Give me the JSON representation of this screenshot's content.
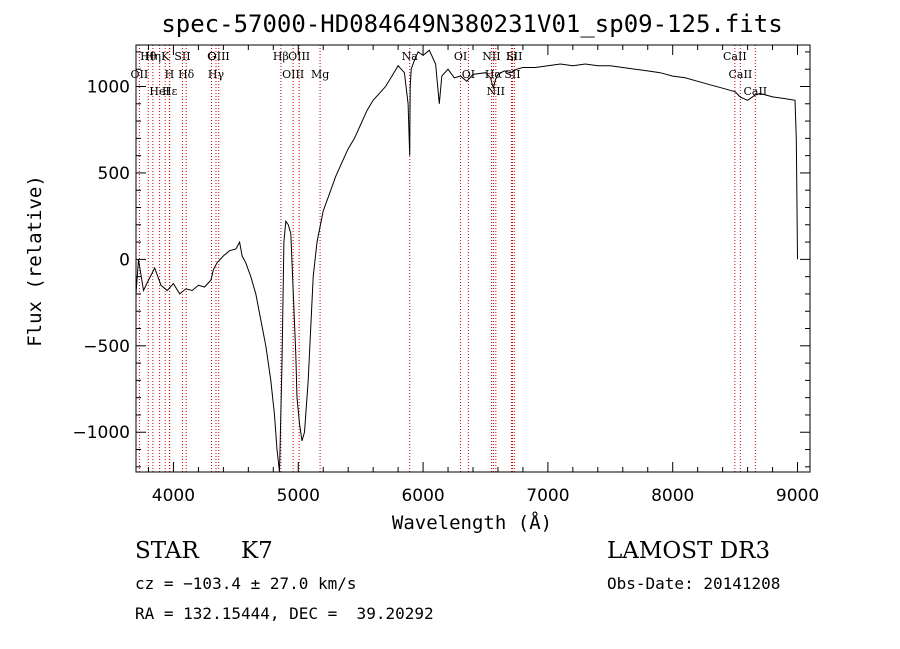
{
  "chart_data": {
    "type": "line",
    "title": "spec-57000-HD084649N380231V01_sp09-125.fits",
    "xlabel": "Wavelength (Å)",
    "ylabel": "Flux (relative)",
    "xlim": [
      3700,
      9100
    ],
    "ylim": [
      -1230,
      1240
    ],
    "x_ticks": [
      4000,
      5000,
      6000,
      7000,
      8000,
      9000
    ],
    "y_ticks": [
      -1000,
      -500,
      0,
      500,
      1000
    ],
    "x_tick_labels": [
      "4000",
      "5000",
      "6000",
      "7000",
      "8000",
      "9000"
    ],
    "y_tick_labels": [
      "−1000",
      "−500",
      "0",
      "500",
      "1000"
    ],
    "series": [
      {
        "name": "flux",
        "x": [
          3700,
          3720,
          3760,
          3800,
          3850,
          3900,
          3950,
          4000,
          4050,
          4100,
          4150,
          4200,
          4250,
          4300,
          4320,
          4350,
          4400,
          4450,
          4500,
          4530,
          4550,
          4580,
          4620,
          4660,
          4700,
          4740,
          4780,
          4810,
          4830,
          4850,
          4870,
          4885,
          4900,
          4920,
          4940,
          4960,
          4980,
          4990,
          5010,
          5030,
          5050,
          5080,
          5100,
          5120,
          5150,
          5200,
          5250,
          5300,
          5350,
          5400,
          5450,
          5500,
          5550,
          5600,
          5650,
          5700,
          5750,
          5800,
          5850,
          5880,
          5893,
          5897,
          5905,
          5930,
          5960,
          6000,
          6050,
          6100,
          6130,
          6150,
          6200,
          6250,
          6300,
          6350,
          6400,
          6500,
          6540,
          6563,
          6580,
          6600,
          6650,
          6700,
          6750,
          6800,
          6900,
          7000,
          7100,
          7200,
          7300,
          7400,
          7500,
          7600,
          7700,
          7800,
          7900,
          8000,
          8100,
          8200,
          8300,
          8400,
          8500,
          8540,
          8600,
          8660,
          8700,
          8800,
          8900,
          8980,
          8990,
          9000
        ],
        "values": [
          -200,
          0,
          -180,
          -120,
          -50,
          -150,
          -180,
          -140,
          -200,
          -170,
          -180,
          -150,
          -160,
          -120,
          -60,
          -20,
          20,
          50,
          60,
          100,
          20,
          -20,
          -100,
          -200,
          -350,
          -500,
          -700,
          -900,
          -1100,
          -1230,
          -600,
          100,
          220,
          200,
          150,
          -200,
          -550,
          -800,
          -950,
          -1050,
          -1000,
          -700,
          -400,
          -100,
          100,
          280,
          380,
          480,
          560,
          640,
          700,
          780,
          860,
          920,
          960,
          1000,
          1060,
          1120,
          1080,
          900,
          600,
          1000,
          1100,
          1150,
          1200,
          1180,
          1210,
          1130,
          900,
          1060,
          1100,
          1050,
          1060,
          1030,
          1070,
          1080,
          1050,
          990,
          1040,
          1070,
          1090,
          1080,
          1100,
          1110,
          1110,
          1120,
          1130,
          1120,
          1130,
          1120,
          1120,
          1110,
          1100,
          1090,
          1080,
          1060,
          1050,
          1030,
          1010,
          990,
          970,
          940,
          920,
          950,
          960,
          940,
          930,
          920,
          700,
          0
        ]
      }
    ],
    "lines": [
      {
        "name": "Hθ",
        "x": 3798
      },
      {
        "name": "OII",
        "x": 3727
      },
      {
        "name": "K",
        "x": 3934
      },
      {
        "name": "H",
        "x": 3968
      },
      {
        "name": "Hε",
        "x": 3970
      },
      {
        "name": "HeI",
        "x": 3889
      },
      {
        "name": "Hη",
        "x": 3835
      },
      {
        "name": "SII",
        "x": 4072
      },
      {
        "name": "Hδ",
        "x": 4102
      },
      {
        "name": "G",
        "x": 4305
      },
      {
        "name": "Hγ",
        "x": 4341
      },
      {
        "name": "OIII",
        "x": 4363
      },
      {
        "name": "Hβ",
        "x": 4861
      },
      {
        "name": "OIII",
        "x": 4959
      },
      {
        "name": "OIII",
        "x": 5007
      },
      {
        "name": "Mg",
        "x": 5175
      },
      {
        "name": "Na",
        "x": 5893
      },
      {
        "name": "OI",
        "x": 6300
      },
      {
        "name": "OI",
        "x": 6363
      },
      {
        "name": "NII",
        "x": 6548
      },
      {
        "name": "Hα",
        "x": 6563
      },
      {
        "name": "NII",
        "x": 6583
      },
      {
        "name": "Li",
        "x": 6708
      },
      {
        "name": "SII",
        "x": 6716
      },
      {
        "name": "SII",
        "x": 6731
      },
      {
        "name": "CaII",
        "x": 8498
      },
      {
        "name": "CaII",
        "x": 8542
      },
      {
        "name": "CaII",
        "x": 8662
      }
    ]
  },
  "info": {
    "class_label": "STAR",
    "subclass_label": "K7",
    "survey": "LAMOST DR3",
    "cz": "cz = −103.4 ± 27.0 km/s",
    "obs_date": "Obs-Date: 20141208",
    "coords": "RA = 132.15444, DEC =  39.20292"
  }
}
